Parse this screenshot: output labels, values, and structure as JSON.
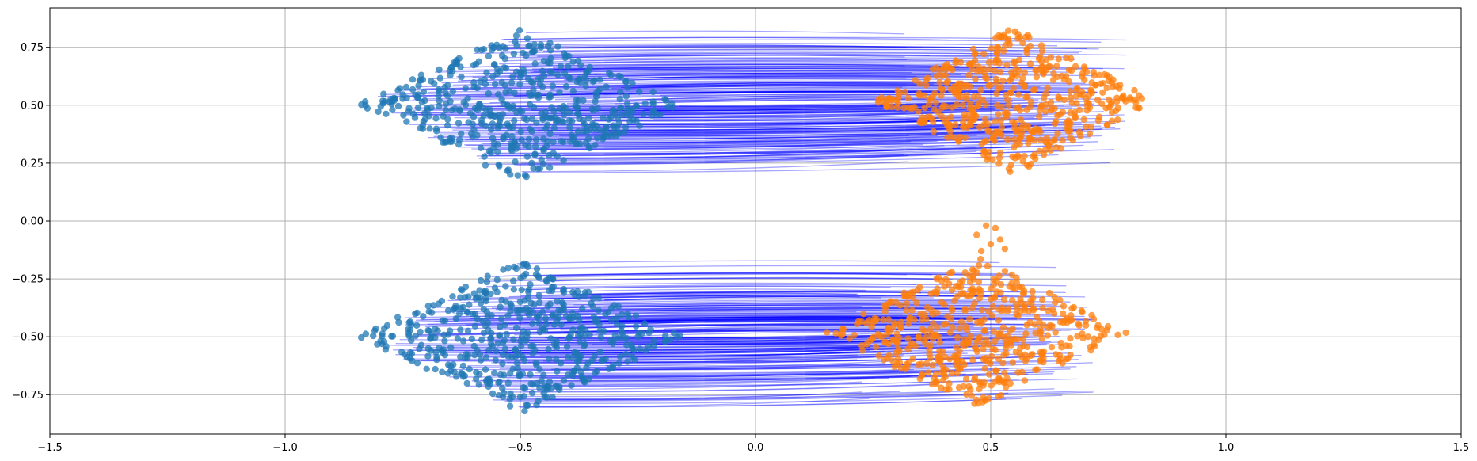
{
  "chart_data": {
    "type": "scatter",
    "title": "",
    "xlabel": "",
    "ylabel": "",
    "xlim": [
      -1.5,
      1.5
    ],
    "ylim": [
      -0.92,
      0.92
    ],
    "grid": true,
    "legend": "none",
    "x_ticks": [
      -1.5,
      -1.0,
      -0.5,
      0.0,
      0.5,
      1.0,
      1.5
    ],
    "x_tick_labels": [
      "−1.5",
      "−1.0",
      "−0.5",
      "0.0",
      "0.5",
      "1.0",
      "1.5"
    ],
    "y_ticks": [
      -0.75,
      -0.5,
      -0.25,
      0.0,
      0.25,
      0.5,
      0.75
    ],
    "y_tick_labels": [
      "−0.75",
      "−0.50",
      "−0.25",
      "0.00",
      "0.25",
      "0.50",
      "0.75"
    ],
    "colors": {
      "source_points": "#1f77b4",
      "target_points": "#ff7f0e",
      "trajectories": "#0000ff",
      "grid": "#b0b0b0",
      "axes": "#000000"
    },
    "series": [
      {
        "role": "source",
        "clusters": [
          {
            "center": [
              -0.5,
              0.5
            ],
            "half_width_x": 0.35,
            "half_height_y": 0.33
          },
          {
            "center": [
              -0.5,
              -0.5
            ],
            "half_width_x": 0.35,
            "half_height_y": 0.33
          }
        ],
        "points_per_cluster": 500
      },
      {
        "role": "target",
        "clusters": [
          {
            "center": [
              0.55,
              0.52
            ],
            "half_width_x": 0.3,
            "half_height_y": 0.32
          },
          {
            "center": [
              0.47,
              -0.48
            ],
            "half_width_x": 0.32,
            "half_height_y": 0.33
          }
        ],
        "outliers": [
          [
            0.49,
            -0.02
          ],
          [
            0.51,
            -0.03
          ],
          [
            0.47,
            -0.06
          ],
          [
            0.52,
            -0.08
          ],
          [
            0.5,
            -0.1
          ],
          [
            0.48,
            -0.13
          ],
          [
            0.53,
            -0.12
          ]
        ],
        "points_per_cluster": 500
      }
    ],
    "trajectories": {
      "description_free": true,
      "count_per_cluster": 220,
      "y_drift": -0.02
    }
  }
}
